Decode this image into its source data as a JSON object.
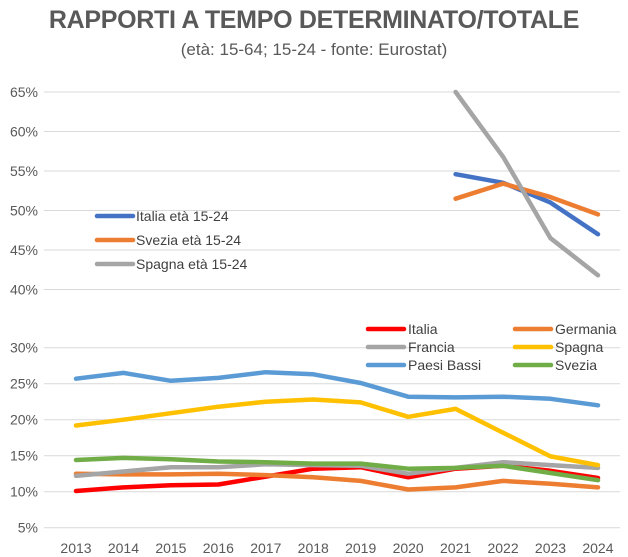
{
  "title": "RAPPORTI A TEMPO DETERMINATO/TOTALE",
  "subtitle": "(età: 15-64; 15-24 - fonte: Eurostat)",
  "chart_data": [
    {
      "type": "line",
      "panel": "upper",
      "title": "RAPPORTI A TEMPO DETERMINATO/TOTALE",
      "subtitle": "(età: 15-64; 15-24 - fonte: Eurostat)",
      "xlabel": "",
      "ylabel": "",
      "x": [
        "2013",
        "2014",
        "2015",
        "2016",
        "2017",
        "2018",
        "2019",
        "2020",
        "2021",
        "2022",
        "2023",
        "2024"
      ],
      "ylim": [
        40,
        65
      ],
      "yticks": [
        "40%",
        "45%",
        "50%",
        "55%",
        "60%",
        "65%"
      ],
      "grid": true,
      "legend_position": "left",
      "series": [
        {
          "name": "Italia età 15-24",
          "color": "#4472C4",
          "values": [
            null,
            null,
            null,
            null,
            null,
            null,
            null,
            null,
            54.6,
            53.5,
            51.0,
            47.0
          ]
        },
        {
          "name": "Svezia  età 15-24",
          "color": "#ED7D31",
          "values": [
            null,
            null,
            null,
            null,
            null,
            null,
            null,
            null,
            51.5,
            53.4,
            51.7,
            49.5
          ]
        },
        {
          "name": "Spagna età 15-24",
          "color": "#A5A5A5",
          "values": [
            null,
            null,
            null,
            null,
            null,
            null,
            null,
            null,
            65.0,
            56.8,
            46.5,
            41.8
          ]
        }
      ]
    },
    {
      "type": "line",
      "panel": "lower",
      "xlabel": "",
      "ylabel": "",
      "x": [
        "2013",
        "2014",
        "2015",
        "2016",
        "2017",
        "2018",
        "2019",
        "2020",
        "2021",
        "2022",
        "2023",
        "2024"
      ],
      "ylim": [
        5,
        30
      ],
      "yticks": [
        "5%",
        "10%",
        "15%",
        "20%",
        "25%",
        "30%"
      ],
      "grid": true,
      "legend_position": "top-right",
      "series": [
        {
          "name": "Italia",
          "color": "#FF0000",
          "values": [
            10.1,
            10.6,
            10.9,
            11.0,
            12.1,
            13.2,
            13.4,
            12.0,
            13.2,
            13.6,
            12.9,
            11.9
          ]
        },
        {
          "name": "Germania",
          "color": "#ED7D31",
          "values": [
            12.5,
            12.4,
            12.4,
            12.5,
            12.3,
            12.0,
            11.5,
            10.3,
            10.6,
            11.5,
            11.1,
            10.6
          ]
        },
        {
          "name": "Francia",
          "color": "#A5A5A5",
          "values": [
            12.2,
            12.8,
            13.4,
            13.4,
            13.8,
            13.7,
            13.6,
            12.5,
            13.3,
            14.1,
            13.7,
            13.3
          ]
        },
        {
          "name": "Spagna",
          "color": "#FFC000",
          "values": [
            19.2,
            20.0,
            20.9,
            21.8,
            22.5,
            22.8,
            22.4,
            20.4,
            21.5,
            18.2,
            14.9,
            13.7
          ]
        },
        {
          "name": "Paesi Bassi",
          "color": "#5B9BD5",
          "values": [
            25.7,
            26.5,
            25.4,
            25.8,
            26.6,
            26.3,
            25.1,
            23.2,
            23.1,
            23.2,
            22.9,
            22.0
          ]
        },
        {
          "name": "Svezia",
          "color": "#70AD47",
          "values": [
            14.4,
            14.7,
            14.5,
            14.2,
            14.1,
            13.9,
            13.9,
            13.2,
            13.3,
            13.6,
            12.6,
            11.6
          ]
        }
      ]
    }
  ]
}
